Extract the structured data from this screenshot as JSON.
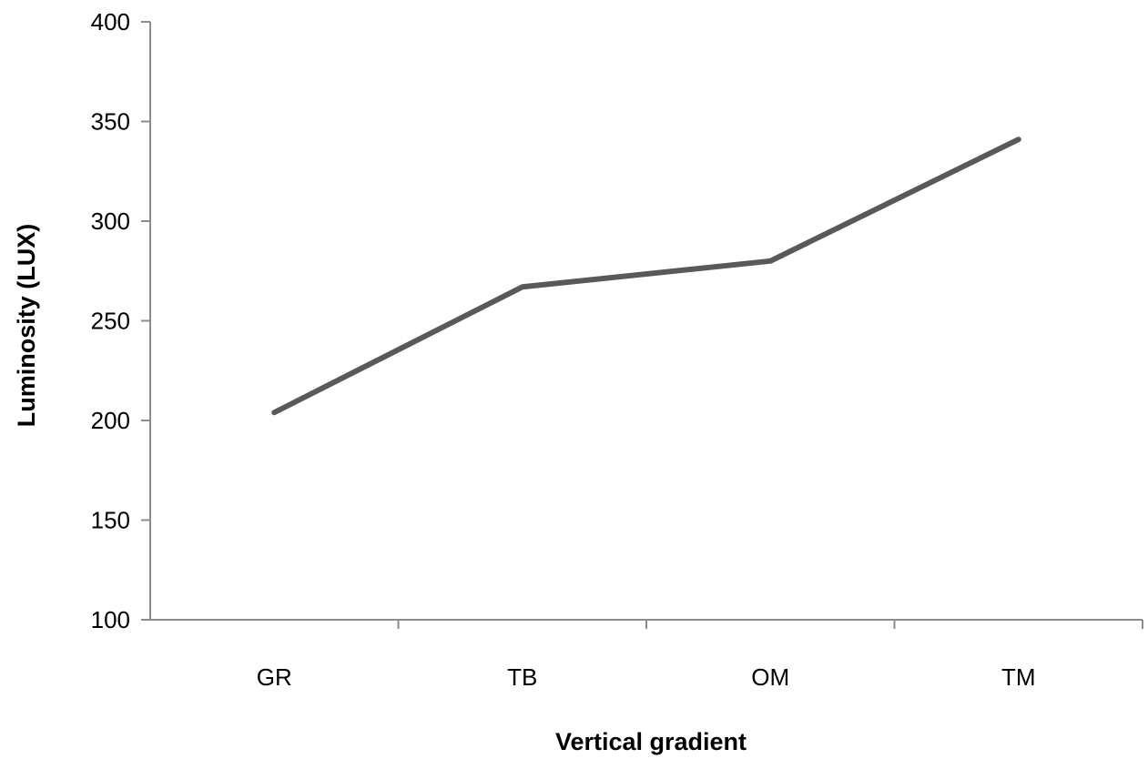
{
  "chart_data": {
    "type": "line",
    "title": "",
    "xlabel": "Vertical gradient",
    "ylabel": "Luminosity (LUX)",
    "categories": [
      "GR",
      "TB",
      "OM",
      "TM"
    ],
    "series": [
      {
        "values": [
          204,
          267,
          280,
          341
        ]
      }
    ],
    "ylim": [
      100,
      400
    ],
    "yticks": [
      100,
      150,
      200,
      250,
      300,
      350,
      400
    ],
    "ytick_labels": [
      "100",
      "150",
      "200",
      "250",
      "300",
      "350",
      "400"
    ],
    "grid": false,
    "legend": "none",
    "colors": {
      "series": "#595959",
      "axis": "#8c8c8c"
    }
  }
}
